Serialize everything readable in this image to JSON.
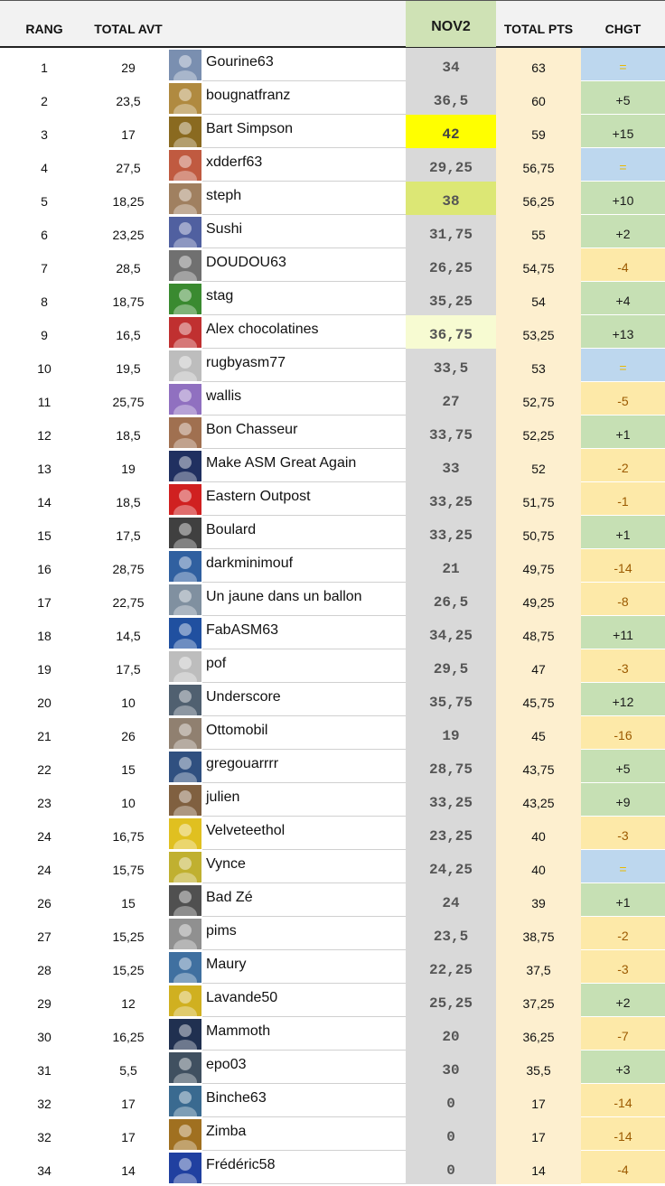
{
  "headers": {
    "rang": "RANG",
    "total_avt": "TOTAL AVT",
    "nov": "NOV2",
    "total_pts": "TOTAL PTS",
    "chgt": "CHGT"
  },
  "colors": {
    "up": "#c6e0b4",
    "down": "#fde9a8",
    "eq": "#bdd7ee",
    "nov_top1": "#ffff00",
    "nov_top2": "#dce775",
    "nov_top3": "#f7fbd2"
  },
  "rows": [
    {
      "rang": "1",
      "avt": "29",
      "name": "Gourine63",
      "nov": "34",
      "pts": "63",
      "chgt": "=",
      "trend": "eq",
      "avatar": "#7a8fb0"
    },
    {
      "rang": "2",
      "avt": "23,5",
      "name": "bougnatfranz",
      "nov": "36,5",
      "pts": "60",
      "chgt": "+5",
      "trend": "up",
      "avatar": "#b08a40"
    },
    {
      "rang": "3",
      "avt": "17",
      "name": "Bart Simpson",
      "nov": "42",
      "pts": "59",
      "chgt": "+15",
      "trend": "up",
      "avatar": "#8a6a20",
      "nov_rank": 1
    },
    {
      "rang": "4",
      "avt": "27,5",
      "name": "xdderf63",
      "nov": "29,25",
      "pts": "56,75",
      "chgt": "=",
      "trend": "eq",
      "avatar": "#c05a40"
    },
    {
      "rang": "5",
      "avt": "18,25",
      "name": "steph",
      "nov": "38",
      "pts": "56,25",
      "chgt": "+10",
      "trend": "up",
      "avatar": "#a08060",
      "nov_rank": 2
    },
    {
      "rang": "6",
      "avt": "23,25",
      "name": "Sushi",
      "nov": "31,75",
      "pts": "55",
      "chgt": "+2",
      "trend": "up",
      "avatar": "#5060a0"
    },
    {
      "rang": "7",
      "avt": "28,5",
      "name": "DOUDOU63",
      "nov": "26,25",
      "pts": "54,75",
      "chgt": "-4",
      "trend": "down",
      "avatar": "#707070"
    },
    {
      "rang": "8",
      "avt": "18,75",
      "name": "stag",
      "nov": "35,25",
      "pts": "54",
      "chgt": "+4",
      "trend": "up",
      "avatar": "#3a8a30"
    },
    {
      "rang": "9",
      "avt": "16,5",
      "name": "Alex chocolatines",
      "nov": "36,75",
      "pts": "53,25",
      "chgt": "+13",
      "trend": "up",
      "avatar": "#c03030",
      "nov_rank": 3
    },
    {
      "rang": "10",
      "avt": "19,5",
      "name": "rugbyasm77",
      "nov": "33,5",
      "pts": "53",
      "chgt": "=",
      "trend": "eq",
      "avatar": "#bdbdbd"
    },
    {
      "rang": "11",
      "avt": "25,75",
      "name": "wallis",
      "nov": "27",
      "pts": "52,75",
      "chgt": "-5",
      "trend": "down",
      "avatar": "#9070c0"
    },
    {
      "rang": "12",
      "avt": "18,5",
      "name": "Bon Chasseur",
      "nov": "33,75",
      "pts": "52,25",
      "chgt": "+1",
      "trend": "up",
      "avatar": "#a07050"
    },
    {
      "rang": "13",
      "avt": "19",
      "name": "Make ASM Great Again",
      "nov": "33",
      "pts": "52",
      "chgt": "-2",
      "trend": "down",
      "avatar": "#203060"
    },
    {
      "rang": "14",
      "avt": "18,5",
      "name": "Eastern Outpost",
      "nov": "33,25",
      "pts": "51,75",
      "chgt": "-1",
      "trend": "down",
      "avatar": "#d02020"
    },
    {
      "rang": "15",
      "avt": "17,5",
      "name": "Boulard",
      "nov": "33,25",
      "pts": "50,75",
      "chgt": "+1",
      "trend": "up",
      "avatar": "#404040"
    },
    {
      "rang": "16",
      "avt": "28,75",
      "name": "darkminimouf",
      "nov": "21",
      "pts": "49,75",
      "chgt": "-14",
      "trend": "down",
      "avatar": "#3060a0"
    },
    {
      "rang": "17",
      "avt": "22,75",
      "name": "Un jaune dans un ballon",
      "nov": "26,5",
      "pts": "49,25",
      "chgt": "-8",
      "trend": "down",
      "avatar": "#8090a0"
    },
    {
      "rang": "18",
      "avt": "14,5",
      "name": "FabASM63",
      "nov": "34,25",
      "pts": "48,75",
      "chgt": "+11",
      "trend": "up",
      "avatar": "#2050a0"
    },
    {
      "rang": "19",
      "avt": "17,5",
      "name": "pof",
      "nov": "29,5",
      "pts": "47",
      "chgt": "-3",
      "trend": "down",
      "avatar": "#bdbdbd"
    },
    {
      "rang": "20",
      "avt": "10",
      "name": "Underscore",
      "nov": "35,75",
      "pts": "45,75",
      "chgt": "+12",
      "trend": "up",
      "avatar": "#506070"
    },
    {
      "rang": "21",
      "avt": "26",
      "name": "Ottomobil",
      "nov": "19",
      "pts": "45",
      "chgt": "-16",
      "trend": "down",
      "avatar": "#908070"
    },
    {
      "rang": "22",
      "avt": "15",
      "name": "gregouarrrr",
      "nov": "28,75",
      "pts": "43,75",
      "chgt": "+5",
      "trend": "up",
      "avatar": "#305080"
    },
    {
      "rang": "23",
      "avt": "10",
      "name": "julien",
      "nov": "33,25",
      "pts": "43,25",
      "chgt": "+9",
      "trend": "up",
      "avatar": "#806040"
    },
    {
      "rang": "24",
      "avt": "16,75",
      "name": "Velveteethol",
      "nov": "23,25",
      "pts": "40",
      "chgt": "-3",
      "trend": "down",
      "avatar": "#e0c020"
    },
    {
      "rang": "24",
      "avt": "15,75",
      "name": "Vynce",
      "nov": "24,25",
      "pts": "40",
      "chgt": "=",
      "trend": "eq",
      "avatar": "#c0b030"
    },
    {
      "rang": "26",
      "avt": "15",
      "name": "Bad Zé",
      "nov": "24",
      "pts": "39",
      "chgt": "+1",
      "trend": "up",
      "avatar": "#505050"
    },
    {
      "rang": "27",
      "avt": "15,25",
      "name": "pims",
      "nov": "23,5",
      "pts": "38,75",
      "chgt": "-2",
      "trend": "down",
      "avatar": "#909090"
    },
    {
      "rang": "28",
      "avt": "15,25",
      "name": "Maury",
      "nov": "22,25",
      "pts": "37,5",
      "chgt": "-3",
      "trend": "down",
      "avatar": "#4070a0"
    },
    {
      "rang": "29",
      "avt": "12",
      "name": "Lavande50",
      "nov": "25,25",
      "pts": "37,25",
      "chgt": "+2",
      "trend": "up",
      "avatar": "#d0b020"
    },
    {
      "rang": "30",
      "avt": "16,25",
      "name": "Mammoth",
      "nov": "20",
      "pts": "36,25",
      "chgt": "-7",
      "trend": "down",
      "avatar": "#203050"
    },
    {
      "rang": "31",
      "avt": "5,5",
      "name": "epo03",
      "nov": "30",
      "pts": "35,5",
      "chgt": "+3",
      "trend": "up",
      "avatar": "#405060"
    },
    {
      "rang": "32",
      "avt": "17",
      "name": "Binche63",
      "nov": "0",
      "pts": "17",
      "chgt": "-14",
      "trend": "down",
      "avatar": "#3a6a90"
    },
    {
      "rang": "32",
      "avt": "17",
      "name": "Zimba",
      "nov": "0",
      "pts": "17",
      "chgt": "-14",
      "trend": "down",
      "avatar": "#a07020"
    },
    {
      "rang": "34",
      "avt": "14",
      "name": "Frédéric58",
      "nov": "0",
      "pts": "14",
      "chgt": "-4",
      "trend": "down",
      "avatar": "#2040a0"
    }
  ]
}
